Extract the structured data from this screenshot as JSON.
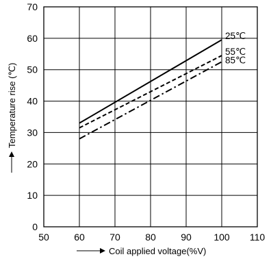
{
  "chart_data": {
    "type": "line",
    "title": "",
    "xlabel": "Coil applied voltage(%V)",
    "ylabel": "Temperature rise (℃)",
    "xlim": [
      50,
      110
    ],
    "ylim": [
      0,
      70
    ],
    "x_ticks": [
      50,
      60,
      70,
      80,
      90,
      100,
      110
    ],
    "y_ticks": [
      0,
      10,
      20,
      30,
      40,
      50,
      60,
      70
    ],
    "x_tick_labels": [
      "50",
      "60",
      "70",
      "80",
      "90",
      "100",
      "110"
    ],
    "y_tick_labels": [
      "0",
      "10",
      "20",
      "30",
      "40",
      "50",
      "60",
      "70"
    ],
    "grid": true,
    "series": [
      {
        "name": "25℃",
        "style": "solid",
        "color": "#000000",
        "x": [
          60,
          100
        ],
        "y": [
          33,
          59.5
        ]
      },
      {
        "name": "55℃",
        "style": "dashed",
        "color": "#000000",
        "x": [
          60,
          100
        ],
        "y": [
          31.5,
          54.5
        ]
      },
      {
        "name": "85℃",
        "style": "dashdot",
        "color": "#000000",
        "x": [
          60,
          100
        ],
        "y": [
          28,
          52.5
        ]
      }
    ]
  }
}
